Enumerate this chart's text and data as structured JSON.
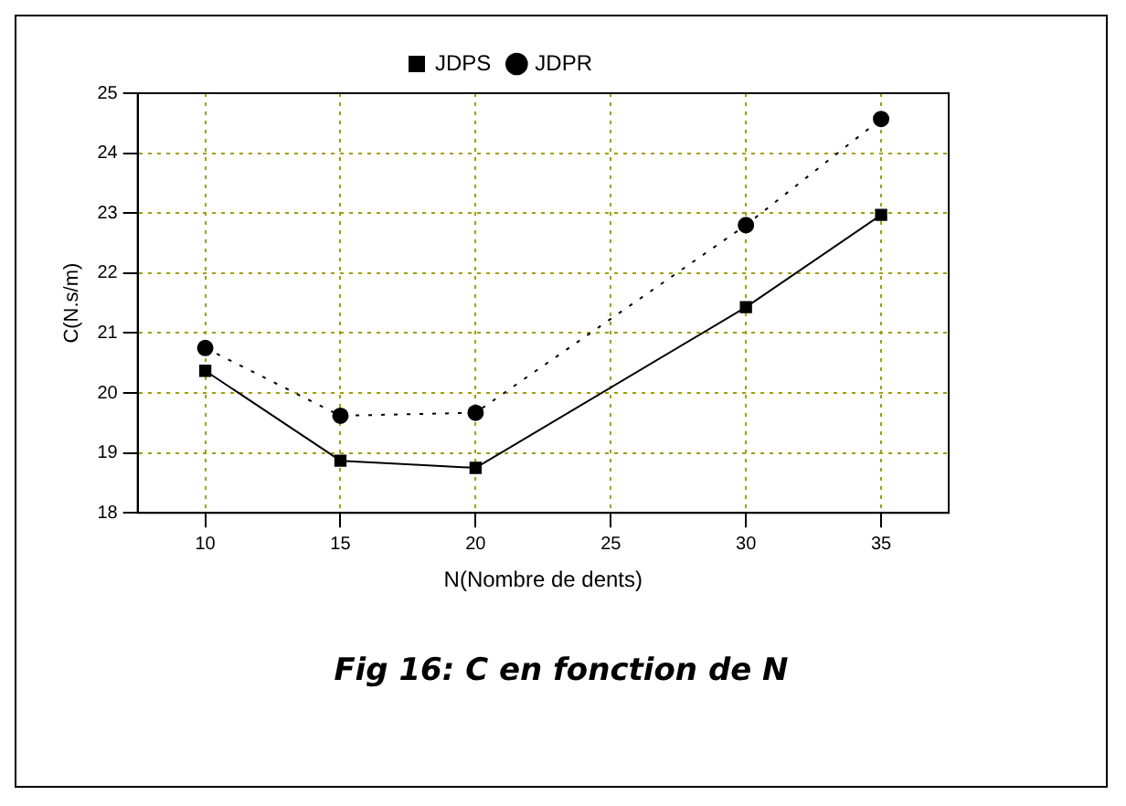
{
  "chart_data": {
    "type": "line",
    "xlabel": "N(Nombre de dents)",
    "ylabel": "C(N.s/m)",
    "x": [
      10,
      15,
      20,
      30,
      35
    ],
    "series": [
      {
        "name": "JDPS",
        "color": "#000000",
        "values": [
          20.37,
          18.87,
          18.75,
          21.43,
          22.97
        ],
        "marker": "square",
        "line_style": "solid"
      },
      {
        "name": "JDPR",
        "color": "#000000",
        "values": [
          20.75,
          19.62,
          19.67,
          22.8,
          24.57
        ],
        "marker": "circle",
        "line_style": "dotted"
      }
    ],
    "xlim": [
      7.5,
      37.5
    ],
    "xticks": [
      10,
      15,
      20,
      25,
      30,
      35
    ],
    "ylim": [
      18,
      25
    ],
    "yticks": [
      18,
      19,
      20,
      21,
      22,
      23,
      24,
      25
    ],
    "grid": true,
    "legend": "top",
    "annotations": [
      "Fig 16: C en fonction de N"
    ]
  }
}
